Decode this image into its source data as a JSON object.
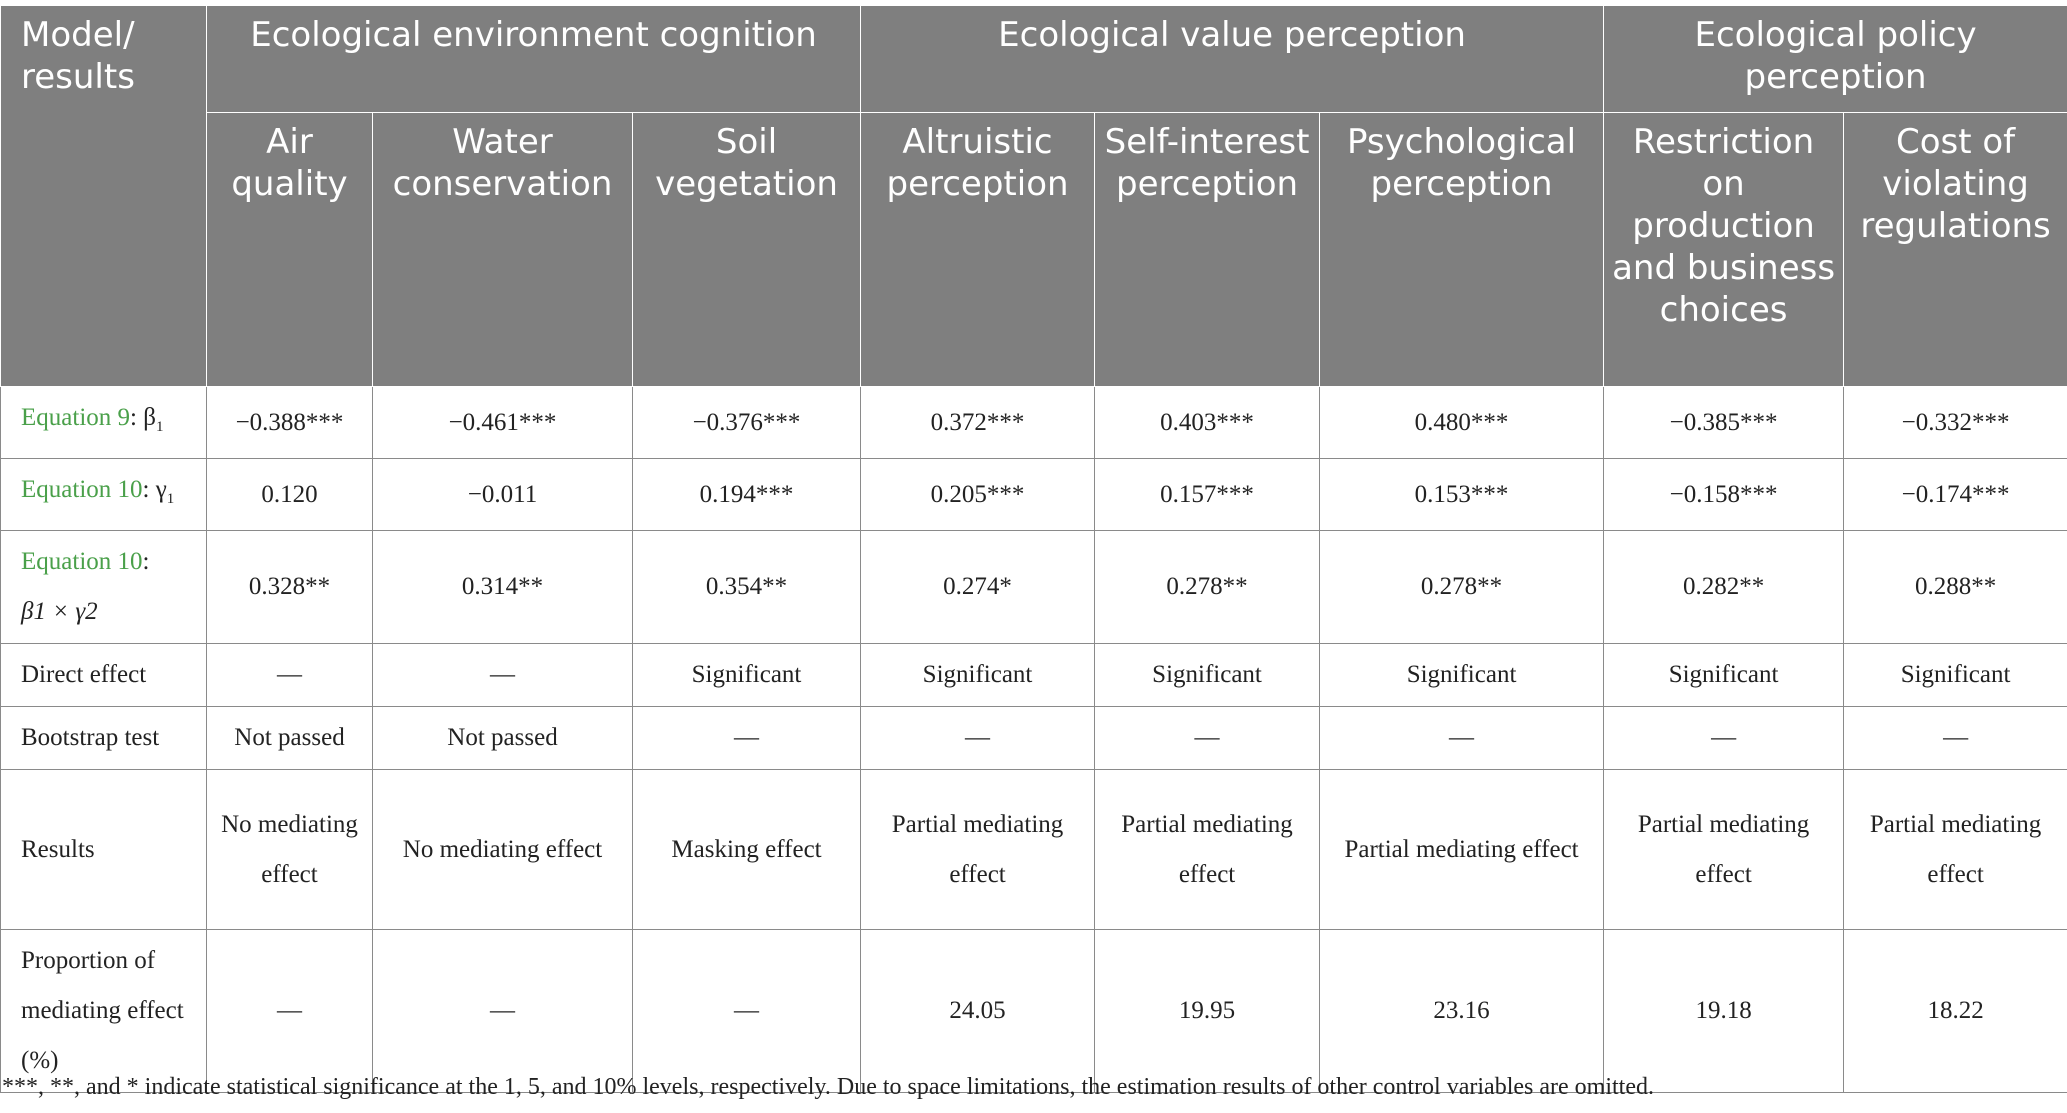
{
  "header": {
    "corner": "Model/ results",
    "groups": [
      "Ecological environment cognition",
      "Ecological value perception",
      "Ecological policy perception"
    ],
    "columns": [
      "Air quality",
      "Water conservation",
      "Soil vegetation",
      "Altruistic perception",
      "Self-interest perception",
      "Psychological perception",
      "Restriction on production and business choices",
      "Cost of violating regulations"
    ]
  },
  "rows": [
    {
      "label_eq": "Equation 9",
      "label_rest": ": β",
      "label_sub": "1",
      "cells": [
        "−0.388***",
        "−0.461***",
        "−0.376***",
        "0.372***",
        "0.403***",
        "0.480***",
        "−0.385***",
        "−0.332***"
      ]
    },
    {
      "label_eq": "Equation 10",
      "label_rest": ": γ",
      "label_sub": "1",
      "cells": [
        "0.120",
        "−0.011",
        "0.194***",
        "0.205***",
        "0.157***",
        "0.153***",
        "−0.158***",
        "−0.174***"
      ]
    },
    {
      "label_eq": "Equation 10",
      "label_rest": ":",
      "label_line2": "β1 × γ2",
      "cells": [
        "0.328**",
        "0.314**",
        "0.354**",
        "0.274*",
        "0.278**",
        "0.278**",
        "0.282**",
        "0.288**"
      ]
    },
    {
      "label": "Direct effect",
      "cells": [
        "—",
        "—",
        "Significant",
        "Significant",
        "Significant",
        "Significant",
        "Significant",
        "Significant"
      ]
    },
    {
      "label": "Bootstrap test",
      "cells": [
        "Not passed",
        "Not passed",
        "—",
        "—",
        "—",
        "—",
        "—",
        "—"
      ]
    },
    {
      "label": "Results",
      "cells": [
        "No mediating effect",
        "No mediating effect",
        "Masking effect",
        "Partial mediating effect",
        "Partial mediating effect",
        "Partial mediating effect",
        "Partial mediating effect",
        "Partial mediating effect"
      ]
    },
    {
      "label": "Proportion of mediating effect (%)",
      "cells": [
        "—",
        "—",
        "—",
        "24.05",
        "19.95",
        "23.16",
        "19.18",
        "18.22"
      ]
    }
  ],
  "footnote": "***, **, and * indicate statistical significance at the 1, 5, and 10% levels, respectively. Due to space limitations, the estimation results of other control variables are omitted."
}
